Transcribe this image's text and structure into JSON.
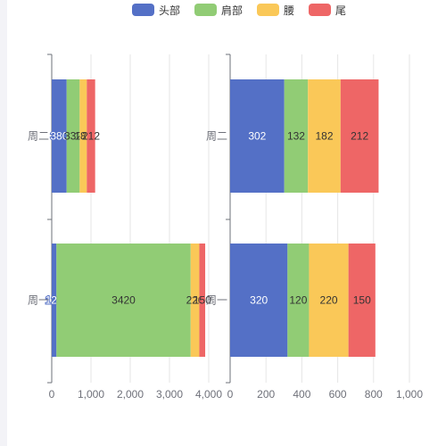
{
  "chart_data": {
    "type": "bar",
    "orientation": "horizontal",
    "stacked": true,
    "legend": {
      "placement": "top-center",
      "items": [
        {
          "name": "头部",
          "color": "#5470c6"
        },
        {
          "name": "肩部",
          "color": "#91cc75"
        },
        {
          "name": "腰",
          "color": "#fac858"
        },
        {
          "name": "尾",
          "color": "#ee6666"
        }
      ]
    },
    "grid_lines": true,
    "panels": [
      {
        "categories": [
          "周一",
          "周二"
        ],
        "xlim": [
          0,
          4000
        ],
        "x_ticks": [
          "0",
          "1,000",
          "2,000",
          "3,000",
          "4,000"
        ],
        "series": [
          {
            "name": "头部",
            "values": [
              120,
              380
            ],
            "labels": [
              "120",
              "380"
            ]
          },
          {
            "name": "肩部",
            "values": [
              3420,
              332
            ],
            "labels": [
              "3420",
              "332"
            ]
          },
          {
            "name": "腰",
            "values": [
              220,
              182
            ],
            "labels": [
              "220",
              "182"
            ]
          },
          {
            "name": "尾",
            "values": [
              150,
              212
            ],
            "labels": [
              "150",
              "212"
            ]
          }
        ]
      },
      {
        "categories": [
          "周一",
          "周二"
        ],
        "xlim": [
          0,
          1000
        ],
        "x_ticks": [
          "0",
          "200",
          "400",
          "600",
          "800",
          "1,000"
        ],
        "series": [
          {
            "name": "头部",
            "values": [
              320,
              302
            ],
            "labels": [
              "320",
              "302"
            ]
          },
          {
            "name": "肩部",
            "values": [
              120,
              132
            ],
            "labels": [
              "120",
              "132"
            ]
          },
          {
            "name": "腰",
            "values": [
              220,
              182
            ],
            "labels": [
              "220",
              "182"
            ]
          },
          {
            "name": "尾",
            "values": [
              150,
              212
            ],
            "labels": [
              "150",
              "212"
            ]
          }
        ]
      }
    ]
  }
}
